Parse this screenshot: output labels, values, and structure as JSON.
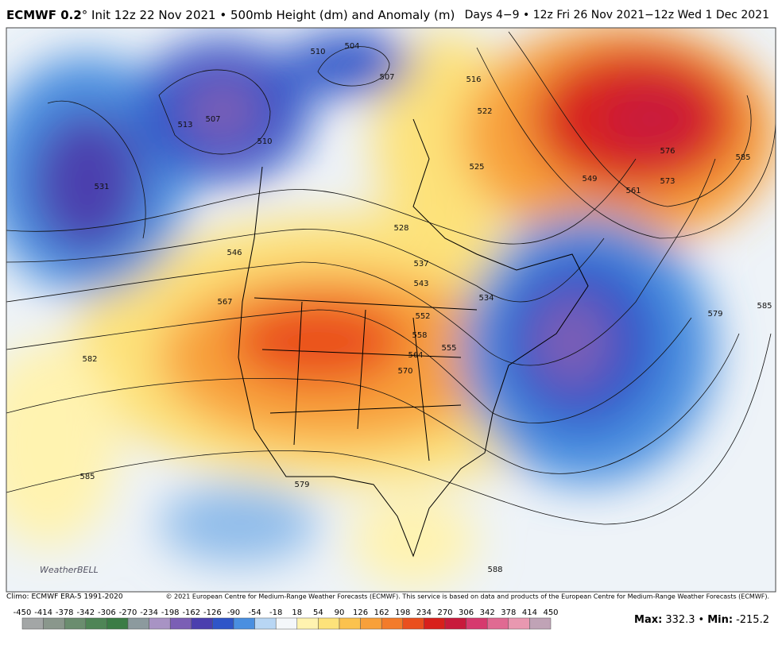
{
  "header": {
    "model": "ECMWF 0.2",
    "subtitle": "° Init 12z 22 Nov 2021 • 500mb Height (dm) and Anomaly (m)",
    "valid": "Days 4−9 • 12z Fri 26 Nov 2021−12z Wed 1 Dec 2021"
  },
  "map": {
    "contour_labels": [
      "504",
      "510",
      "507",
      "513",
      "507",
      "510",
      "531",
      "546",
      "567",
      "582",
      "585",
      "579",
      "588",
      "528",
      "537",
      "543",
      "552",
      "558",
      "564",
      "570",
      "555",
      "534",
      "516",
      "522",
      "525",
      "549",
      "561",
      "576",
      "573",
      "585",
      "579",
      "585"
    ],
    "logo": "WeatherBELL"
  },
  "footer": {
    "climo": "Climo: ECMWF ERA-5 1991-2020",
    "copyright": "© 2021 European Centre for Medium-Range Weather Forecasts (ECMWF). This service is based on data and products of the European Centre for Medium-Range Weather Forecasts (ECMWF)."
  },
  "colorbar": {
    "ticks": [
      -450,
      -414,
      -378,
      -342,
      -306,
      -270,
      -234,
      -198,
      -162,
      -126,
      -90,
      -54,
      -18,
      18,
      54,
      90,
      126,
      162,
      198,
      234,
      270,
      306,
      342,
      378,
      414,
      450
    ]
  },
  "stats": {
    "max_label": "Max:",
    "max": 332.3,
    "separator": "•",
    "min_label": "Min:",
    "min": -215.2
  }
}
